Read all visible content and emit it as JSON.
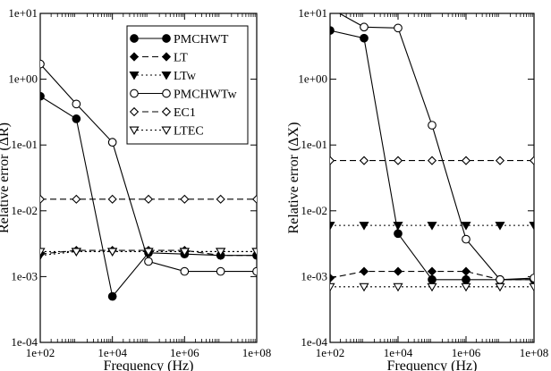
{
  "chart_data": [
    {
      "type": "line",
      "xlabel": "Frequency (Hz)",
      "ylabel": "Relative error (ΔR)",
      "xscale": "log",
      "yscale": "log",
      "xlim": [
        100,
        100000000
      ],
      "ylim": [
        0.0001,
        10
      ],
      "xticks": [
        "1e+02",
        "1e+04",
        "1e+06",
        "1e+08"
      ],
      "yticks": [
        "1e-04",
        "1e-03",
        "1e-02",
        "1e-01",
        "1e+00",
        "1e+01"
      ],
      "grid": false,
      "legend_position": "top-right",
      "series": [
        {
          "name": "PMCHWT",
          "marker": "filled-circle",
          "line": "solid",
          "x": [
            100,
            1000,
            10000,
            100000,
            1000000,
            10000000,
            100000000
          ],
          "y": [
            0.55,
            0.25,
            0.0005,
            0.0023,
            0.0022,
            0.0021,
            0.0021
          ]
        },
        {
          "name": "LT",
          "marker": "filled-diamond",
          "line": "dashed",
          "x": [
            100,
            1000,
            10000,
            100000,
            1000000,
            10000000,
            100000000
          ],
          "y": [
            0.0022,
            0.0025,
            0.0025,
            0.0025,
            0.0025,
            0.0021,
            0.0021
          ]
        },
        {
          "name": "LTw",
          "marker": "filled-triangle-down",
          "line": "dotted",
          "x": [
            100,
            1000,
            10000,
            100000,
            1000000,
            10000000,
            100000000
          ],
          "y": [
            0.0021,
            0.0024,
            0.0024,
            0.0024,
            0.0024,
            0.0024,
            0.0024
          ]
        },
        {
          "name": "PMCHWTw",
          "marker": "open-circle",
          "line": "solid",
          "x": [
            100,
            1000,
            10000,
            100000,
            1000000,
            10000000,
            100000000
          ],
          "y": [
            1.7,
            0.42,
            0.11,
            0.0017,
            0.0012,
            0.0012,
            0.0012
          ]
        },
        {
          "name": "EC1",
          "marker": "open-diamond",
          "line": "dashed",
          "x": [
            100,
            1000,
            10000,
            100000,
            1000000,
            10000000,
            100000000
          ],
          "y": [
            0.015,
            0.015,
            0.015,
            0.015,
            0.015,
            0.015,
            0.015
          ]
        },
        {
          "name": "LTEC",
          "marker": "open-triangle-down",
          "line": "dotted",
          "x": [
            100,
            1000,
            10000,
            100000,
            1000000,
            10000000,
            100000000
          ],
          "y": [
            0.0024,
            0.0024,
            0.0024,
            0.0024,
            0.0024,
            0.0024,
            0.0024
          ]
        }
      ]
    },
    {
      "type": "line",
      "xlabel": "Frequency (Hz)",
      "ylabel": "Relative error (ΔX)",
      "xscale": "log",
      "yscale": "log",
      "xlim": [
        100,
        100000000
      ],
      "ylim": [
        0.0001,
        10
      ],
      "xticks": [
        "1e+02",
        "1e+04",
        "1e+06",
        "1e+08"
      ],
      "yticks": [
        "1e-04",
        "1e-03",
        "1e-02",
        "1e-01",
        "1e+00",
        "1e+01"
      ],
      "grid": false,
      "series": [
        {
          "marker": "filled-circle",
          "line": "solid",
          "x": [
            100,
            1000,
            10000,
            100000,
            1000000,
            10000000,
            100000000
          ],
          "y": [
            5.5,
            4.2,
            0.0045,
            0.0009,
            0.0009,
            0.0009,
            0.0009
          ]
        },
        {
          "marker": "filled-diamond",
          "line": "dashed",
          "x": [
            100,
            1000,
            10000,
            100000,
            1000000,
            10000000,
            100000000
          ],
          "y": [
            0.00095,
            0.0012,
            0.0012,
            0.0012,
            0.0012,
            0.0009,
            0.0009
          ]
        },
        {
          "marker": "filled-triangle-down",
          "line": "dotted",
          "x": [
            100,
            1000,
            10000,
            100000,
            1000000,
            10000000,
            100000000
          ],
          "y": [
            0.006,
            0.006,
            0.006,
            0.006,
            0.006,
            0.006,
            0.006
          ]
        },
        {
          "marker": "open-circle",
          "line": "solid",
          "x": [
            100,
            1000,
            10000,
            100000,
            1000000,
            10000000,
            100000000
          ],
          "y": [
            12,
            6.2,
            6.0,
            0.2,
            0.0037,
            0.0009,
            0.00095
          ]
        },
        {
          "marker": "open-diamond",
          "line": "dashed",
          "x": [
            100,
            1000,
            10000,
            100000,
            1000000,
            10000000,
            100000000
          ],
          "y": [
            0.058,
            0.058,
            0.058,
            0.058,
            0.058,
            0.058,
            0.058
          ]
        },
        {
          "marker": "open-triangle-down",
          "line": "dotted",
          "x": [
            100,
            1000,
            10000,
            100000,
            1000000,
            10000000,
            100000000
          ],
          "y": [
            0.0007,
            0.0007,
            0.0007,
            0.0007,
            0.0007,
            0.0007,
            0.0007
          ]
        }
      ]
    }
  ]
}
